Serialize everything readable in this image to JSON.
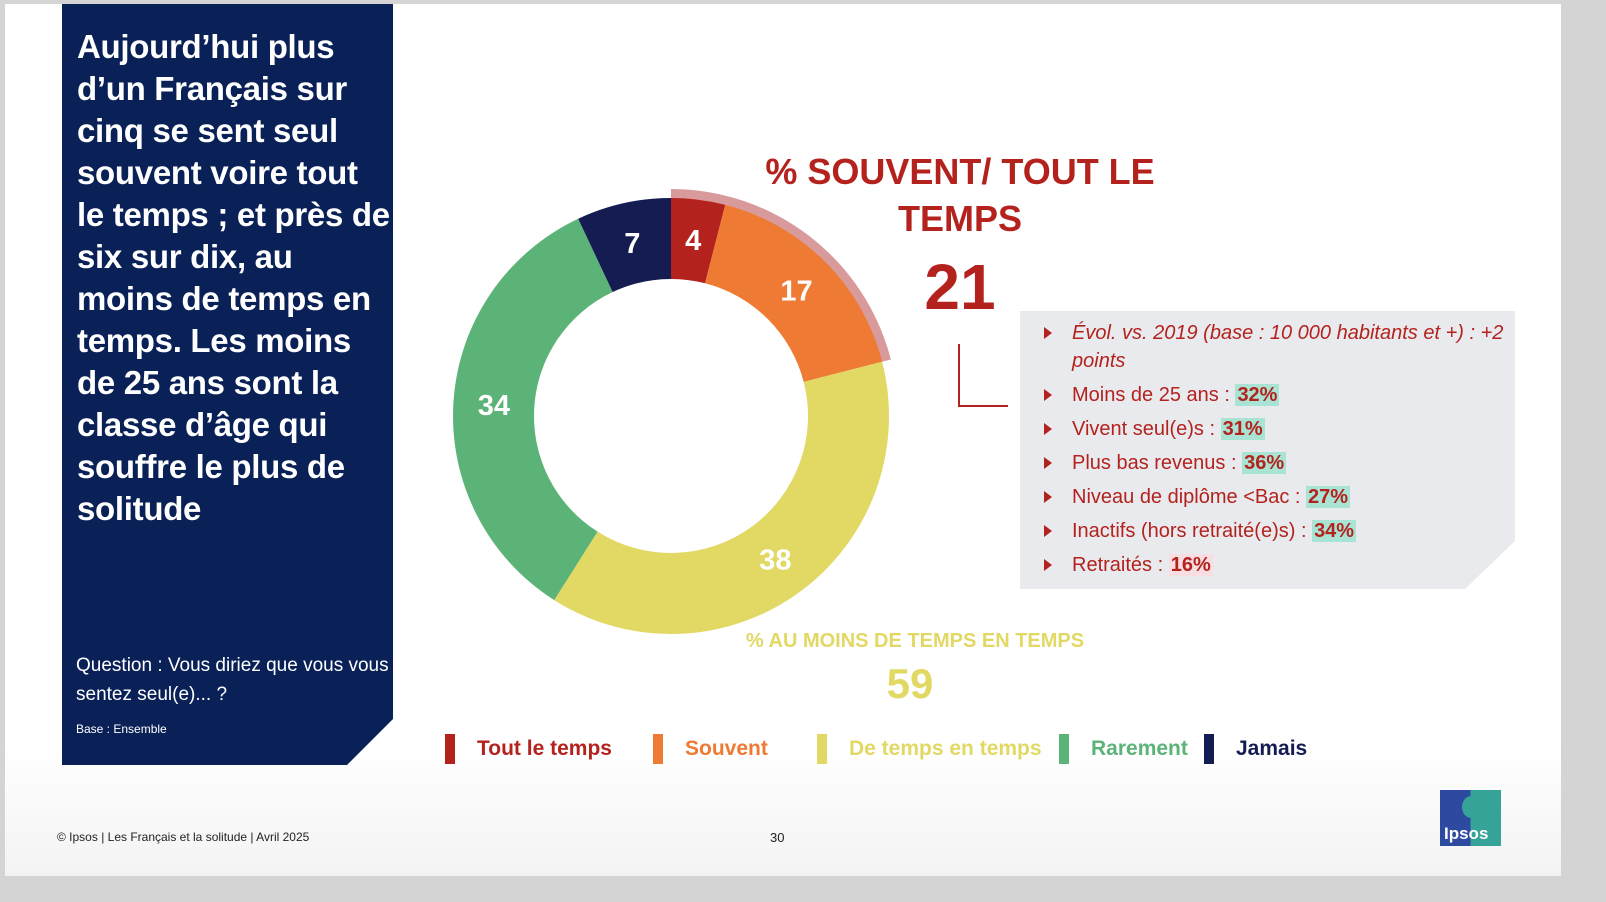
{
  "panel": {
    "headline": "Aujourd’hui plus d’un Français sur cinq se sent seul souvent voire tout le temps ; et près de six sur dix, au moins de temps en temps. Les moins de 25 ans sont la classe d’âge qui souffre le plus de solitude",
    "question": "Question : Vous diriez que vous vous sentez seul(e)... ?",
    "base": "Base : Ensemble"
  },
  "kpi": {
    "title": "% SOUVENT/ TOUT LE TEMPS",
    "value": "21"
  },
  "details": {
    "evol": "Évol. vs. 2019 (base : 10 000 habitants et +) : +2 points",
    "items": [
      {
        "label": "Moins de 25 ans : ",
        "value": "32%"
      },
      {
        "label": "Vivent seul(e)s : ",
        "value": "31%"
      },
      {
        "label": "Plus bas revenus : ",
        "value": "36%"
      },
      {
        "label": "Niveau de diplôme <Bac : ",
        "value": "27%"
      },
      {
        "label": "Inactifs (hors retraité(e)s) : ",
        "value": "34%"
      },
      {
        "label": "Retraités : ",
        "value": "16%"
      }
    ]
  },
  "sub": {
    "title": "% AU MOINS DE TEMPS EN TEMPS",
    "value": "59"
  },
  "chart_data": {
    "type": "pie",
    "variant": "donut",
    "categories": [
      "Tout le temps",
      "Souvent",
      "De temps en temps",
      "Rarement",
      "Jamais"
    ],
    "values": [
      4,
      17,
      38,
      34,
      7
    ],
    "labels": [
      "4",
      "17",
      "38",
      "34",
      "7"
    ],
    "colors": [
      "#b4221e",
      "#ee7a33",
      "#e2d864",
      "#5cb378",
      "#141c52"
    ],
    "highlight": {
      "label": "% SOUVENT/ TOUT LE TEMPS",
      "value": 21,
      "color": "#d89a9a"
    }
  },
  "footer": {
    "text": "© Ipsos | Les Français et la solitude | Avril 2025",
    "page": "30",
    "logo": "Ipsos"
  }
}
